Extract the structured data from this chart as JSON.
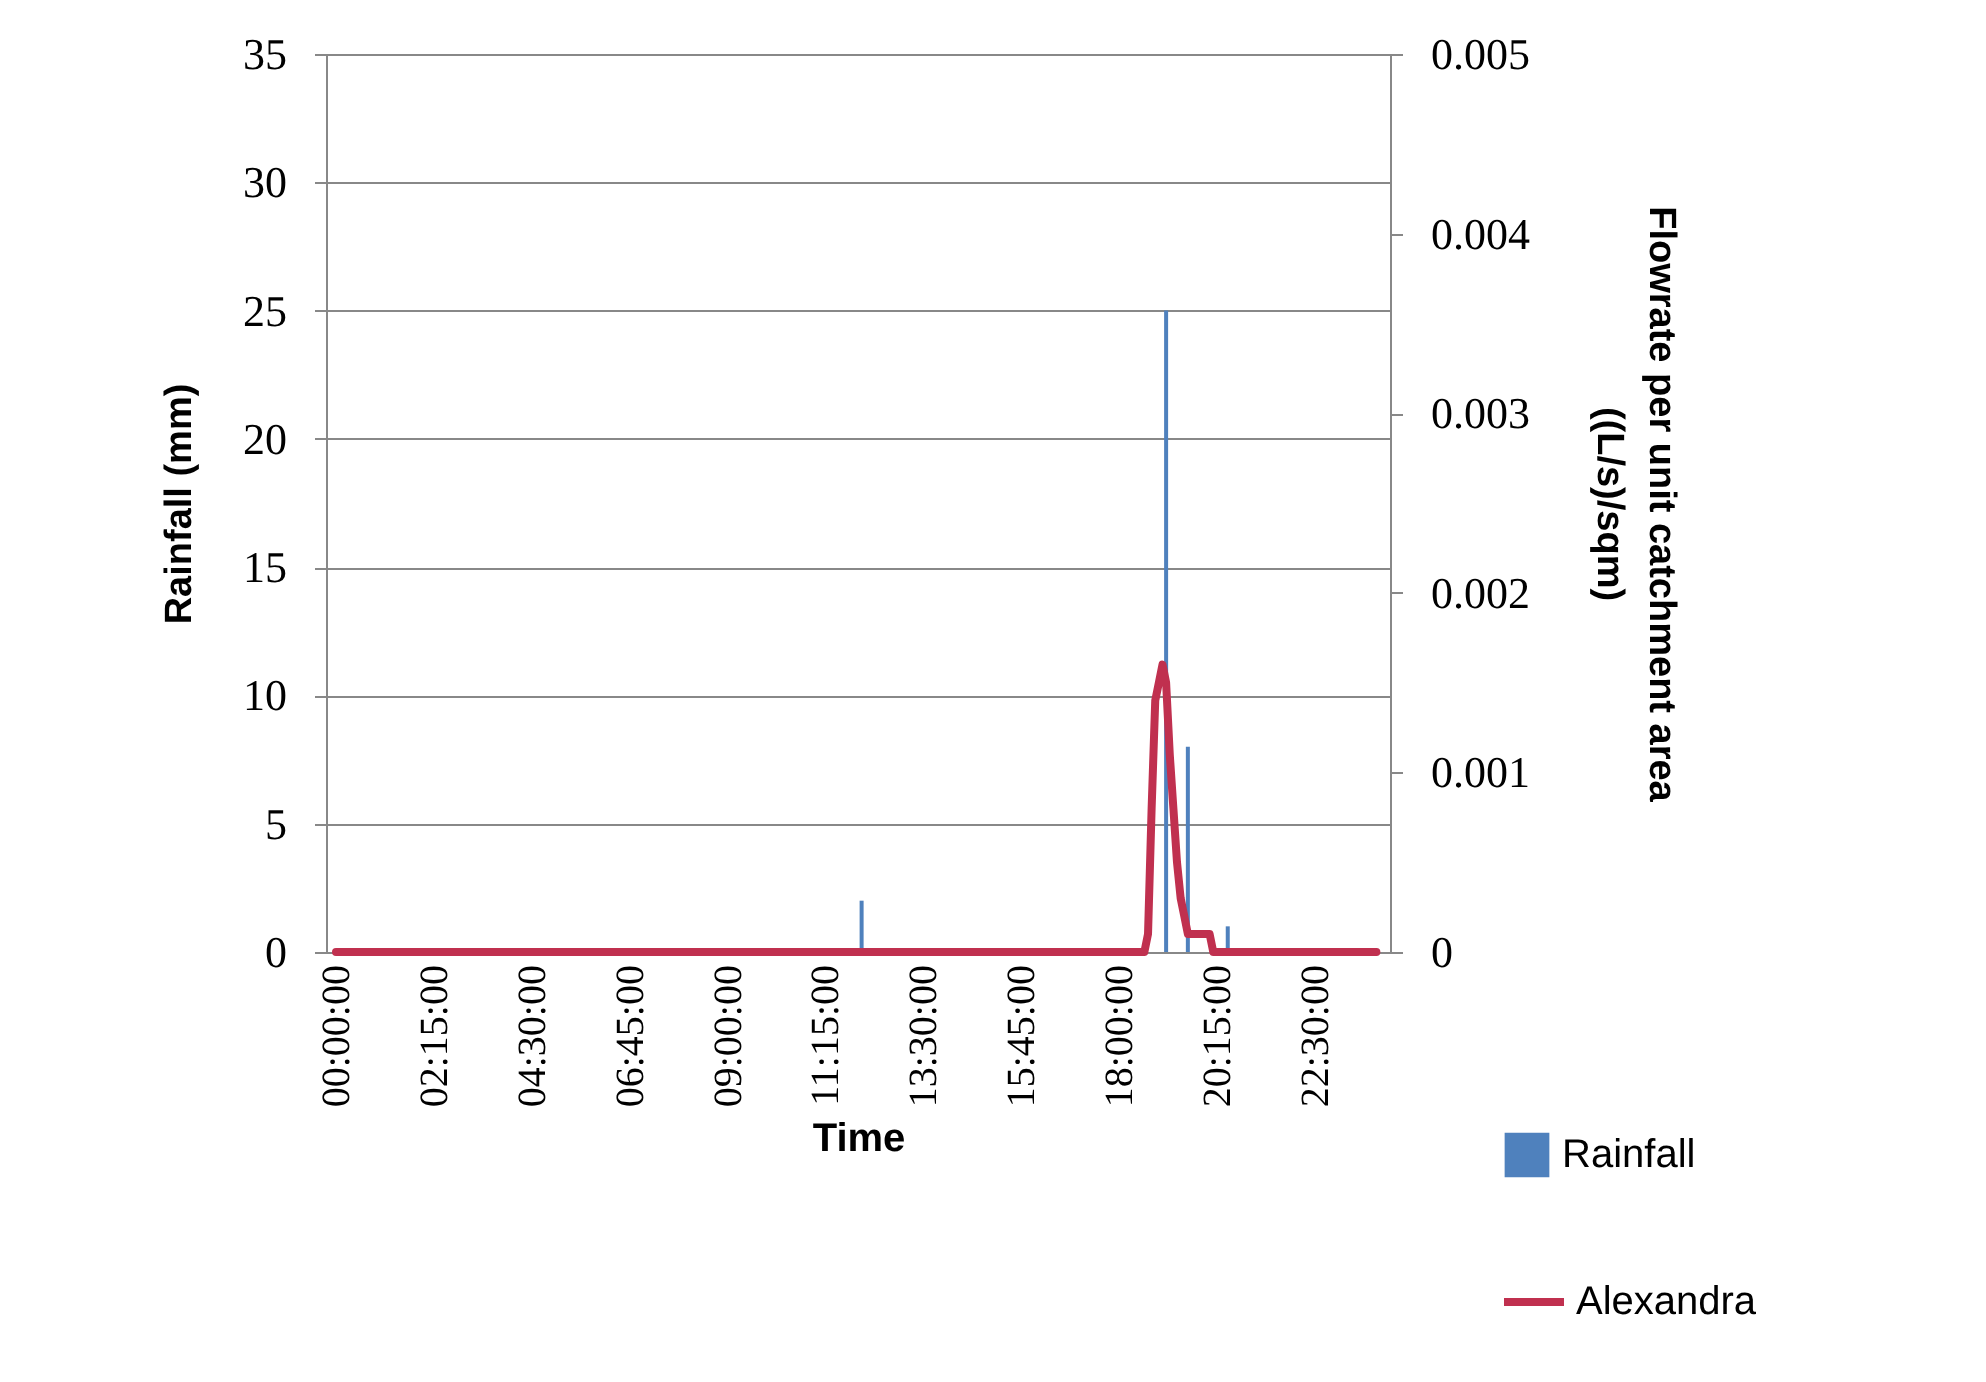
{
  "chart_data": {
    "type": "bar",
    "xlabel": "Time",
    "ylabel": "Rainfall (mm)",
    "y2label": "Flowrate per unit catchment area\n((L/s)/sqm)",
    "xlim": [
      0,
      24
    ],
    "xticks": [
      {
        "value": 0,
        "label": "00:00:00"
      },
      {
        "value": 2.25,
        "label": "02:15:00"
      },
      {
        "value": 4.5,
        "label": "04:30:00"
      },
      {
        "value": 6.75,
        "label": "06:45:00"
      },
      {
        "value": 9,
        "label": "09:00:00"
      },
      {
        "value": 11.25,
        "label": "11:15:00"
      },
      {
        "value": 13.5,
        "label": "13:30:00"
      },
      {
        "value": 15.75,
        "label": "15:45:00"
      },
      {
        "value": 18,
        "label": "18:00:00"
      },
      {
        "value": 20.25,
        "label": "20:15:00"
      },
      {
        "value": 22.5,
        "label": "22:30:00"
      }
    ],
    "ylim": [
      0,
      35
    ],
    "yticks": [
      0,
      5,
      10,
      15,
      20,
      25,
      30,
      35
    ],
    "y2lim": [
      0,
      0.005
    ],
    "y2ticks": [
      0,
      0.001,
      0.002,
      0.003,
      0.004,
      0.005
    ],
    "grid": "y",
    "legend": "bottom right",
    "series": [
      {
        "name": "Rainfall",
        "color": "#4f81bd",
        "x": [
          12.083,
          19.083,
          19.583,
          20.5
        ],
        "values": [
          2,
          25,
          8,
          1
        ]
      },
      {
        "name": "Alexandra",
        "type": "line",
        "axis": "y2",
        "color": "#c0304f",
        "x": [
          0,
          18.583,
          18.667,
          18.75,
          18.833,
          18.917,
          19.0,
          19.083,
          19.167,
          19.25,
          19.333,
          19.417,
          19.5,
          19.583,
          19.667,
          19.75,
          20.083,
          20.167,
          20.25,
          23.917
        ],
        "values": [
          0,
          0,
          0.0001,
          0.0008,
          0.0014,
          0.0015,
          0.0016,
          0.0015,
          0.0011,
          0.0008,
          0.0005,
          0.0003,
          0.0002,
          0.0001,
          0.0001,
          0.0001,
          0.0001,
          0,
          0,
          0
        ]
      }
    ]
  }
}
